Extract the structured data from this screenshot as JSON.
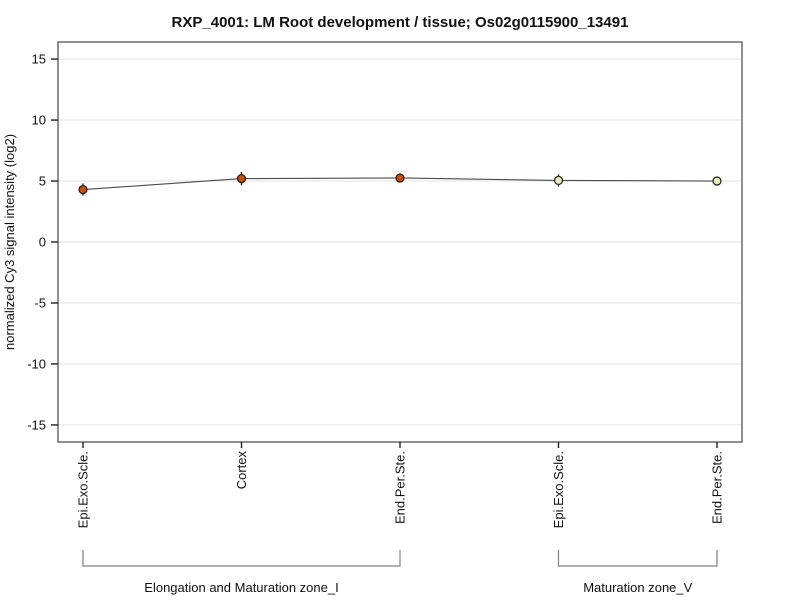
{
  "chart_data": {
    "type": "line",
    "title": "RXP_4001: LM Root development / tissue; Os02g0115900_13491",
    "ylabel": "normalized Cy3 signal intensity (log2)",
    "xlabel": "",
    "ylim": [
      -16.4,
      16.4
    ],
    "yticks": [
      -15,
      -10,
      -5,
      0,
      5,
      10,
      15
    ],
    "grid": true,
    "legend": "none",
    "categories": [
      "Epi.Exo.Scle.",
      "Cortex",
      "End.Per.Ste.",
      "Epi.Exo.Scle.",
      "End.Per.Ste."
    ],
    "values": [
      4.3,
      5.2,
      5.25,
      5.05,
      5.0
    ],
    "errors": [
      0.5,
      0.55,
      0.3,
      0.5,
      0.35
    ],
    "point_colors": [
      "#cc4f00",
      "#cc4f00",
      "#cc4f00",
      "#eaeab4",
      "#eaeab4"
    ],
    "groups": [
      {
        "label": "Elongation and Maturation zone_I",
        "from": 0,
        "to": 2
      },
      {
        "label": "Maturation zone_V",
        "from": 3,
        "to": 4
      }
    ],
    "colors": {
      "grid": "#e2e2e2",
      "line": "#4a4a4a",
      "error": "#1a1a1a",
      "point_stroke": "#1a1a1a",
      "box": "#555555",
      "axis": "#111111",
      "text": "#111111",
      "bracket": "#808080",
      "background": "#ffffff"
    }
  }
}
